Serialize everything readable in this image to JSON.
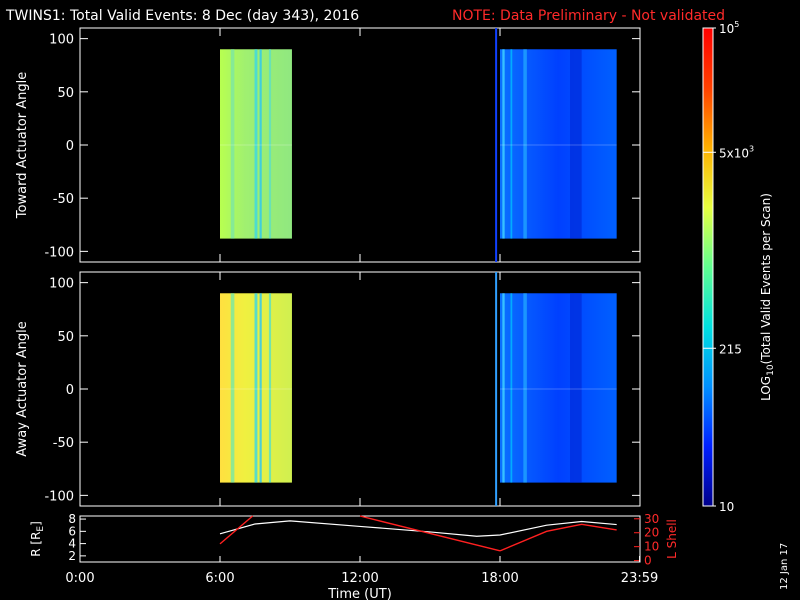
{
  "header": {
    "title": "TWINS1: Total Valid Events:  8 Dec (day 343), 2016",
    "note": "NOTE: Data Preliminary - Not validated",
    "title_color": "#ffffff",
    "note_color": "#ff2020"
  },
  "side_stamp": "12 Jan 17",
  "chart_data": [
    {
      "type": "heatmap",
      "panel": "toward",
      "ylabel": "Toward Actuator Angle",
      "ylim": [
        -110,
        110
      ],
      "yticks": [
        100,
        50,
        0,
        -50,
        -100
      ],
      "x_range_hours": [
        0,
        24
      ],
      "blocks": [
        {
          "start": "06:00",
          "end": "09:05",
          "angle_range": [
            -88,
            90
          ],
          "level": "high (yellow-green)"
        },
        {
          "start": "18:00",
          "end": "23:00",
          "angle_range": [
            -88,
            90
          ],
          "level": "low (blue)"
        }
      ],
      "marker_time": "17:50"
    },
    {
      "type": "heatmap",
      "panel": "away",
      "ylabel": "Away Actuator Angle",
      "ylim": [
        -110,
        110
      ],
      "yticks": [
        100,
        50,
        0,
        -50,
        -100
      ],
      "x_range_hours": [
        0,
        24
      ],
      "blocks": [
        {
          "start": "06:00",
          "end": "09:05",
          "angle_range": [
            -88,
            90
          ],
          "level": "high (yellow)"
        },
        {
          "start": "18:00",
          "end": "23:00",
          "angle_range": [
            -88,
            90
          ],
          "level": "low (blue)"
        }
      ],
      "marker_time": "17:50"
    },
    {
      "type": "line",
      "panel": "orbit",
      "ylabel_left": "R [R",
      "ylabel_left_sub": "E",
      "ylabel_left_end": "]",
      "ylabel_right": "L Shell",
      "yticks_left": [
        8,
        6,
        4,
        2
      ],
      "yticks_right": [
        30,
        20,
        10,
        0
      ],
      "xlabel": "Time (UT)",
      "xticks": [
        "0:00",
        "6:00",
        "12:00",
        "18:00",
        "23:59"
      ],
      "series": [
        {
          "axis": "left",
          "color": "#ffffff",
          "x": [
            6.0,
            7.5,
            9.0,
            12.0,
            15.0,
            17.0,
            18.0,
            20.0,
            21.5,
            23.0
          ],
          "y": [
            5.6,
            7.2,
            7.7,
            6.8,
            5.9,
            5.2,
            5.4,
            7.0,
            7.6,
            7.1
          ]
        },
        {
          "axis": "right",
          "color": "#ff2020",
          "segments": [
            {
              "x": [
                6.0,
                7.4
              ],
              "y": [
                12,
                32
              ]
            },
            {
              "x": [
                12.0,
                18.0
              ],
              "y": [
                32,
                7
              ]
            },
            {
              "x": [
                18.0,
                20.0,
                21.5,
                23.0
              ],
              "y": [
                7,
                21,
                26,
                22
              ]
            }
          ]
        }
      ]
    }
  ],
  "colorbar": {
    "label": "LOG",
    "label_sub": "10",
    "label_end": "(Total Valid Events per Scan)",
    "ticks": [
      {
        "base": "10",
        "sup": "5",
        "frac": 1.0
      },
      {
        "base": "5x10",
        "sup": "3",
        "frac": 0.74
      },
      {
        "base": "215",
        "sup": "",
        "frac": 0.33
      },
      {
        "base": "10",
        "sup": "",
        "frac": 0.0
      }
    ],
    "colors": [
      "#00008c",
      "#0020ff",
      "#0090ff",
      "#00e0e0",
      "#60ff90",
      "#e8ff40",
      "#ffb000",
      "#ff4000",
      "#ff0000"
    ]
  }
}
